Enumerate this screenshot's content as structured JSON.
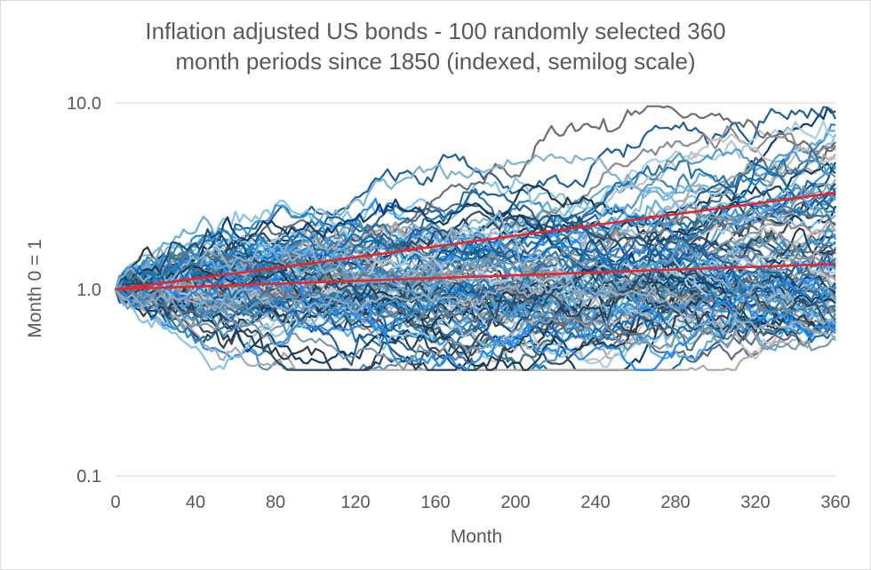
{
  "chart_data": {
    "type": "line",
    "title_line1": "Inflation adjusted US bonds - 100 randomly selected 360",
    "title_line2": "month periods since 1850 (indexed, semilog scale)",
    "xlabel": "Month",
    "ylabel": "Month 0 = 1",
    "xlim": [
      0,
      360
    ],
    "ylim": [
      0.1,
      10
    ],
    "y_scale": "log",
    "x_ticks": [
      "0",
      "40",
      "80",
      "120",
      "160",
      "200",
      "240",
      "280",
      "320",
      "360"
    ],
    "y_ticks": [
      {
        "value": 10,
        "label": "10.0"
      },
      {
        "value": 1,
        "label": "1.0"
      },
      {
        "value": 0.1,
        "label": "0.1"
      }
    ],
    "gridlines": "horizontal",
    "legend": "none",
    "series_count": 100,
    "series_end_values_month_360": [
      9.4,
      8.2,
      7.6,
      7.1,
      6.8,
      6.5,
      6.2,
      5.9,
      5.6,
      5.3,
      5.0,
      4.8,
      4.6,
      4.4,
      4.2,
      4.0,
      3.9,
      3.7,
      3.6,
      3.5,
      3.3,
      3.2,
      3.1,
      3.0,
      2.9,
      2.8,
      2.7,
      2.6,
      2.5,
      2.45,
      2.35,
      2.25,
      2.2,
      2.1,
      2.05,
      2.0,
      1.95,
      1.9,
      1.85,
      1.8,
      1.75,
      1.7,
      1.65,
      1.6,
      1.55,
      1.5,
      1.47,
      1.44,
      1.41,
      1.38,
      1.35,
      1.32,
      1.3,
      1.27,
      1.24,
      1.22,
      1.19,
      1.17,
      1.14,
      1.12,
      1.1,
      1.08,
      1.06,
      1.04,
      1.02,
      1.0,
      0.98,
      0.96,
      0.95,
      0.93,
      0.92,
      0.9,
      0.88,
      0.87,
      0.85,
      0.84,
      0.82,
      0.81,
      0.8,
      0.78,
      0.77,
      0.76,
      0.74,
      0.73,
      0.72,
      0.71,
      0.7,
      0.69,
      0.68,
      0.67,
      0.66,
      0.65,
      0.64,
      0.63,
      0.62,
      0.61,
      0.6,
      0.58,
      0.56,
      0.53
    ],
    "series_min_values": [
      0.38,
      0.4,
      0.42,
      0.45,
      0.48,
      0.5,
      0.55,
      0.6,
      0.65,
      0.7
    ],
    "trend_lines": [
      {
        "x": [
          0,
          360
        ],
        "y": [
          1.0,
          3.3
        ],
        "color": "#e8262b"
      },
      {
        "x": [
          0,
          360
        ],
        "y": [
          1.0,
          1.37
        ],
        "color": "#e8262b"
      }
    ],
    "palette": [
      "#0b3c6f",
      "#1f5f9e",
      "#2e86c1",
      "#5dade2",
      "#85c1e9",
      "#a9cce3",
      "#4f6d7a",
      "#6e6e6e",
      "#8c8c8c",
      "#b0a8a8",
      "#c8c0c0",
      "#173b57",
      "#2874a6",
      "#3498db",
      "#1b4f72",
      "#5499c7",
      "#7fb3d5",
      "#2c3e50",
      "#34495e",
      "#5d6d7e",
      "#0e6fb8",
      "#1a8cff",
      "#4a90c2",
      "#7c97ab",
      "#9aa9b5"
    ]
  }
}
